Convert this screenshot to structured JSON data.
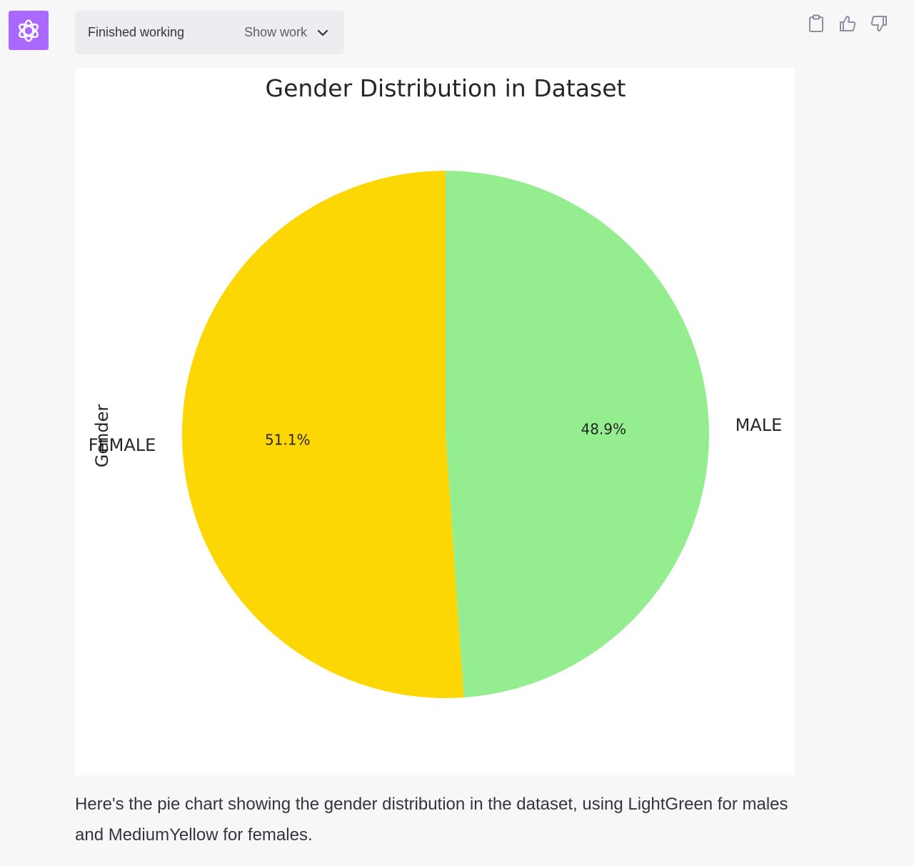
{
  "header": {
    "status_label": "Finished working",
    "show_work_label": "Show work"
  },
  "actions": [
    "clipboard-icon",
    "thumbs-up-icon",
    "thumbs-down-icon"
  ],
  "colors": {
    "avatar": "#ab68ff",
    "female_slice": "#fcd703",
    "male_slice": "#94ee8f"
  },
  "chart_data": {
    "type": "pie",
    "title": "Gender Distribution in Dataset",
    "ylabel": "Gender",
    "slices": [
      {
        "label": "MALE",
        "value": 48.9,
        "pct_label": "48.9%",
        "color": "#94ee8f"
      },
      {
        "label": "FEMALE",
        "value": 51.1,
        "pct_label": "51.1%",
        "color": "#fcd703"
      }
    ],
    "start_angle": 90,
    "direction": "clockwise"
  },
  "message": {
    "text": "Here's the pie chart showing the gender distribution in the dataset, using LightGreen for males and MediumYellow for females."
  }
}
